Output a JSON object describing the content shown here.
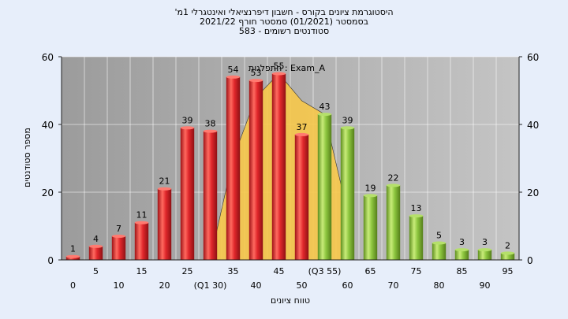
{
  "titles": {
    "line1": "'היסטוגרמת ציונים בקורס - חשבון דיפרנציאלי ואינטגרלי 1מ",
    "line2": "בסמסטר  (01/2021)  סמסטר חורף  2021/22",
    "line3": "סטודנטים רשומים - 583"
  },
  "colors": {
    "background": "#e7eefa",
    "plot_bg": "#b8b8b8",
    "red_bar": "#e0272b",
    "green_bar": "#8dc63f",
    "area": "#f7c84a"
  },
  "chart_data": {
    "type": "bar",
    "xlabel": "טווח ציונים",
    "ylabel": "מספר סטודנטים",
    "ylim": [
      0,
      60
    ],
    "yticks": [
      0,
      20,
      40,
      60
    ],
    "grid": true,
    "annotation": "התפלגות : Exam_A",
    "categories": [
      "0",
      "5",
      "10",
      "15",
      "20",
      "25",
      "30",
      "35",
      "40",
      "45",
      "50",
      "55",
      "60",
      "65",
      "70",
      "75",
      "80",
      "85",
      "90",
      "95"
    ],
    "tick_labels": [
      "0",
      "5",
      "10",
      "15",
      "20",
      "25",
      "(Q1 30)",
      "35",
      "40",
      "45",
      "50",
      "(Q3 55)",
      "60",
      "65",
      "70",
      "75",
      "80",
      "85",
      "90",
      "95"
    ],
    "values": [
      1,
      4,
      7,
      11,
      21,
      39,
      38,
      54,
      53,
      55,
      37,
      43,
      39,
      19,
      22,
      13,
      5,
      3,
      3,
      2
    ],
    "bar_colors": [
      "red",
      "red",
      "red",
      "red",
      "red",
      "red",
      "red",
      "red",
      "red",
      "red",
      "red",
      "green",
      "green",
      "green",
      "green",
      "green",
      "green",
      "green",
      "green",
      "green"
    ],
    "area_series": {
      "x": [
        "30",
        "35",
        "40",
        "45",
        "50",
        "55",
        "60"
      ],
      "values": [
        0,
        30,
        48,
        55,
        47,
        43,
        14
      ]
    }
  }
}
